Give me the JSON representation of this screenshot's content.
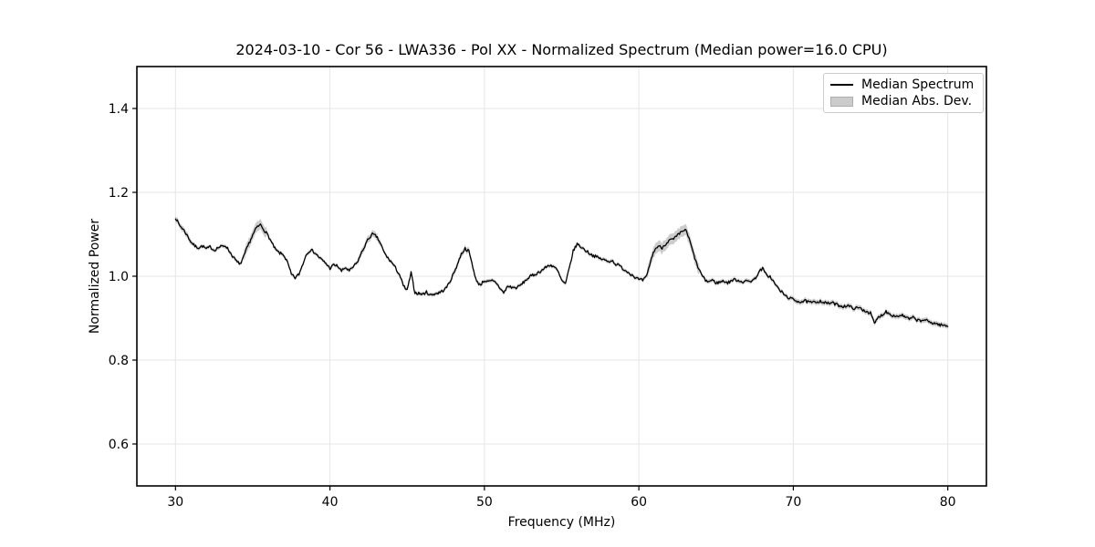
{
  "figure_title": "2024-03-10 - Cor 56 - LWA336 - Pol XX - Normalized Spectrum (Median power=16.0 CPU)",
  "chart_data": {
    "type": "line",
    "title": "2024-03-10 - Cor 56 - LWA336 - Pol XX - Normalized Spectrum (Median power=16.0 CPU)",
    "xlabel": "Frequency (MHz)",
    "ylabel": "Normalized Power",
    "xlim": [
      27.5,
      82.5
    ],
    "ylim": [
      0.5,
      1.5
    ],
    "xticks": [
      30,
      40,
      50,
      60,
      70,
      80
    ],
    "yticks": [
      0.6,
      0.8,
      1.0,
      1.2,
      1.4
    ],
    "grid": true,
    "legend": {
      "position": "upper right",
      "entries": [
        "Median Spectrum",
        "Median Abs. Dev."
      ]
    },
    "colors": {
      "line": "#000000",
      "band_fill": "rgba(128,128,128,0.40)",
      "grid": "#e6e6e6",
      "frame": "#000000"
    },
    "series": [
      {
        "name": "Median Spectrum",
        "style": "line",
        "x_start": 30.0,
        "x_step": 0.25,
        "values": [
          1.14,
          1.122,
          1.112,
          1.098,
          1.082,
          1.072,
          1.068,
          1.072,
          1.065,
          1.07,
          1.062,
          1.068,
          1.071,
          1.073,
          1.059,
          1.045,
          1.033,
          1.03,
          1.055,
          1.078,
          1.098,
          1.116,
          1.123,
          1.11,
          1.097,
          1.078,
          1.062,
          1.055,
          1.051,
          1.033,
          1.004,
          0.996,
          1.005,
          1.03,
          1.055,
          1.063,
          1.057,
          1.047,
          1.038,
          1.03,
          1.019,
          1.027,
          1.024,
          1.012,
          1.021,
          1.012,
          1.022,
          1.032,
          1.052,
          1.072,
          1.09,
          1.1,
          1.095,
          1.08,
          1.057,
          1.043,
          1.033,
          1.019,
          1.004,
          0.977,
          0.966,
          1.008,
          0.961,
          0.959,
          0.957,
          0.962,
          0.955,
          0.958,
          0.96,
          0.964,
          0.971,
          0.986,
          1.006,
          1.028,
          1.053,
          1.066,
          1.059,
          1.022,
          0.986,
          0.98,
          0.99,
          0.986,
          0.989,
          0.985,
          0.972,
          0.96,
          0.976,
          0.974,
          0.972,
          0.976,
          0.984,
          0.993,
          1.0,
          1.004,
          1.009,
          1.015,
          1.022,
          1.027,
          1.023,
          1.012,
          0.99,
          0.981,
          1.02,
          1.06,
          1.077,
          1.07,
          1.063,
          1.056,
          1.05,
          1.046,
          1.042,
          1.039,
          1.035,
          1.038,
          1.029,
          1.025,
          1.017,
          1.011,
          1.005,
          0.998,
          0.992,
          0.99,
          0.999,
          1.035,
          1.062,
          1.072,
          1.068,
          1.078,
          1.086,
          1.088,
          1.097,
          1.105,
          1.112,
          1.09,
          1.058,
          1.028,
          1.008,
          0.992,
          0.987,
          0.991,
          0.984,
          0.986,
          0.989,
          0.984,
          0.99,
          0.992,
          0.989,
          0.987,
          0.988,
          0.989,
          0.993,
          1.009,
          1.019,
          1.003,
          0.999,
          0.985,
          0.972,
          0.962,
          0.953,
          0.948,
          0.944,
          0.941,
          0.939,
          0.941,
          0.938,
          0.937,
          0.939,
          0.941,
          0.937,
          0.935,
          0.937,
          0.933,
          0.93,
          0.928,
          0.93,
          0.926,
          0.923,
          0.925,
          0.92,
          0.916,
          0.912,
          0.887,
          0.902,
          0.908,
          0.916,
          0.91,
          0.906,
          0.904,
          0.908,
          0.902,
          0.898,
          0.901,
          0.896,
          0.893,
          0.897,
          0.891,
          0.889,
          0.887,
          0.884,
          0.883,
          0.88
        ]
      },
      {
        "name": "Median Abs. Dev.",
        "style": "band",
        "around": "Median Spectrum",
        "default_mad": 0.0045,
        "mad_segments": [
          [
            30.0,
            31.0,
            0.007
          ],
          [
            31.0,
            34.4,
            0.0045
          ],
          [
            34.4,
            35.9,
            0.012
          ],
          [
            35.9,
            41.8,
            0.0045
          ],
          [
            41.8,
            43.3,
            0.008
          ],
          [
            43.3,
            47.8,
            0.0045
          ],
          [
            47.8,
            49.3,
            0.007
          ],
          [
            49.3,
            60.5,
            0.0045
          ],
          [
            60.5,
            63.9,
            0.013
          ],
          [
            63.9,
            70.0,
            0.005
          ],
          [
            70.0,
            80.0,
            0.006
          ]
        ]
      }
    ],
    "noise": {
      "amplitude": 0.0035,
      "seed": 7,
      "upsample": 4
    }
  }
}
